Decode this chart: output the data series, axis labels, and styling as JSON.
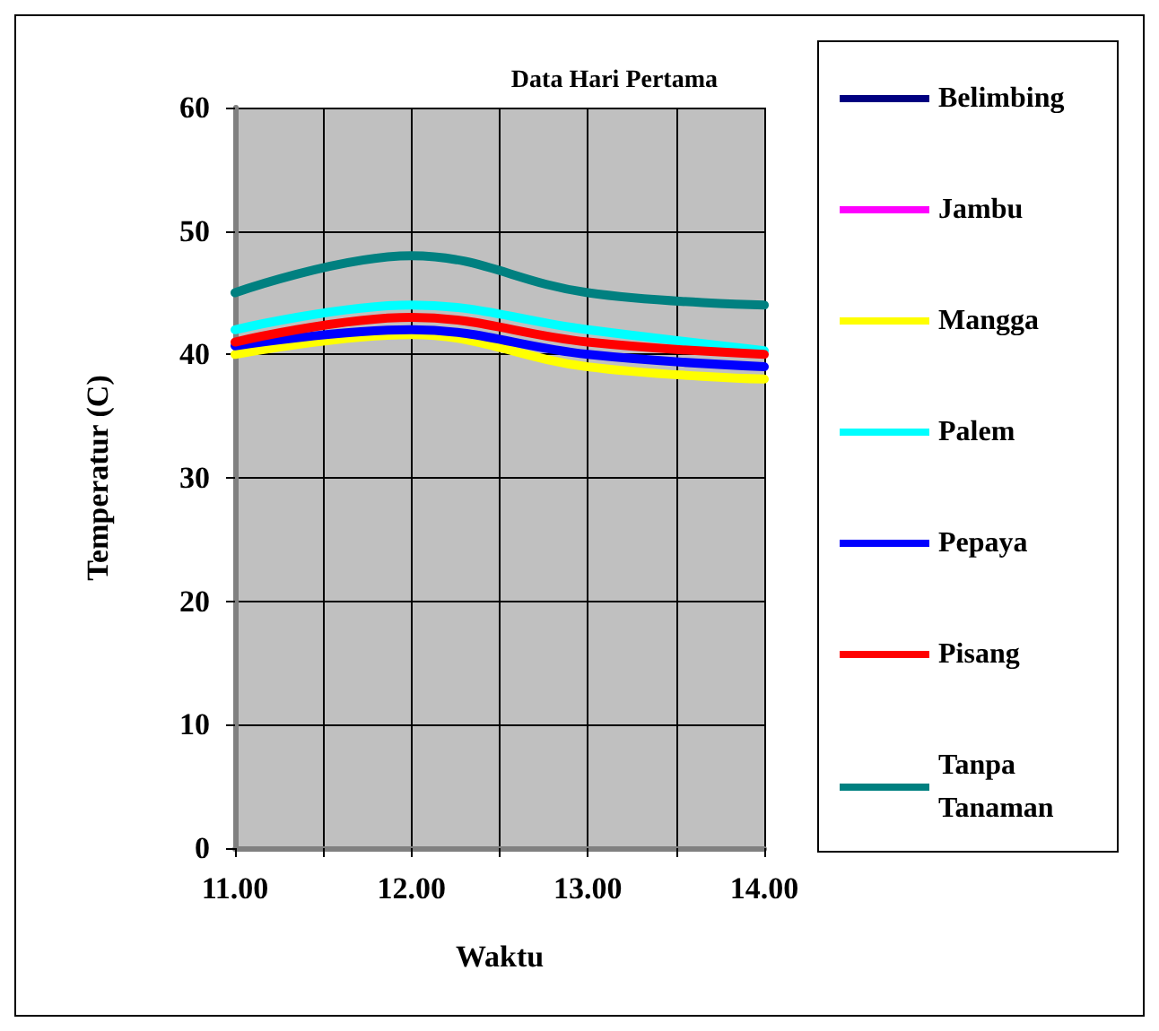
{
  "chart_data": {
    "type": "line",
    "title": "Data Hari Pertama",
    "xlabel": "Waktu",
    "ylabel": "Temperatur (C)",
    "x": [
      11,
      12,
      13,
      14
    ],
    "xlim": [
      11,
      14
    ],
    "xticks": [
      {
        "value": 11,
        "label": "11.00"
      },
      {
        "value": 11.5,
        "label": null
      },
      {
        "value": 12,
        "label": "12.00"
      },
      {
        "value": 12.5,
        "label": null
      },
      {
        "value": 13,
        "label": "13.00"
      },
      {
        "value": 13.5,
        "label": null
      },
      {
        "value": 14,
        "label": "14.00"
      }
    ],
    "ylim": [
      0,
      60
    ],
    "yticks": [
      0,
      10,
      20,
      30,
      40,
      50,
      60
    ],
    "grid": true,
    "legend": "right",
    "marker": "none",
    "line_style": "solid",
    "series": [
      {
        "name": "Belimbing",
        "color": "#000080",
        "values": [
          null,
          null,
          null,
          null
        ]
      },
      {
        "name": "Jambu",
        "color": "#ff00ff",
        "values": [
          null,
          null,
          null,
          null
        ]
      },
      {
        "name": "Mangga",
        "color": "#ffff00",
        "values": [
          40,
          41.6,
          39,
          38
        ]
      },
      {
        "name": "Palem",
        "color": "#00ffff",
        "values": [
          42,
          44,
          42,
          40.3
        ]
      },
      {
        "name": "Pepaya",
        "color": "#0000ff",
        "values": [
          40.7,
          42,
          40,
          39
        ]
      },
      {
        "name": "Pisang",
        "color": "#ff0000",
        "values": [
          41,
          43,
          41,
          40
        ]
      },
      {
        "name": "Tanpa Tanaman",
        "color": "#008080",
        "values": [
          45,
          48,
          45,
          44
        ]
      }
    ]
  }
}
